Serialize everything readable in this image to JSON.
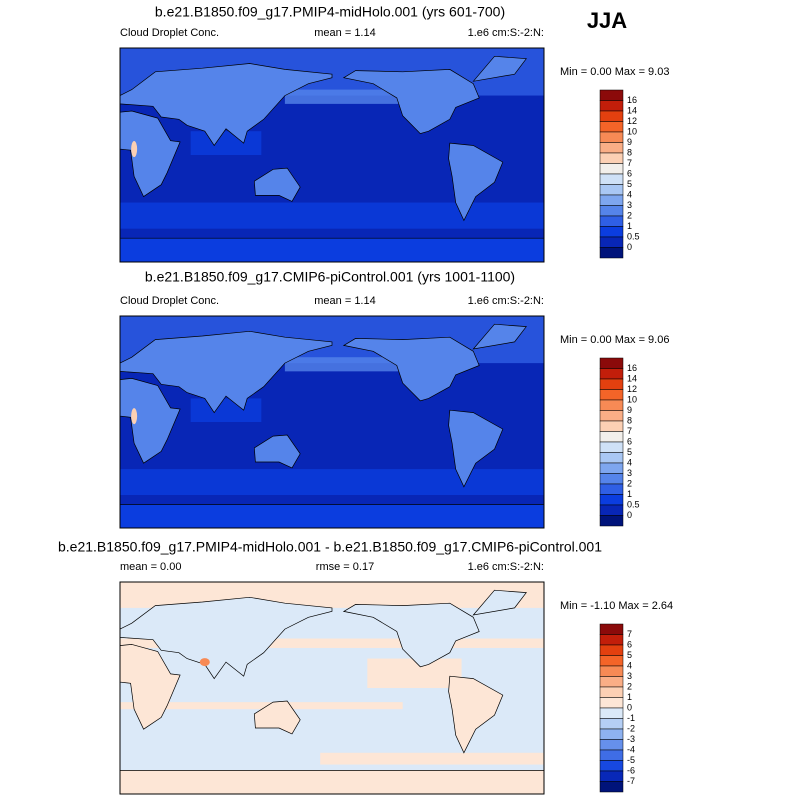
{
  "season": "JJA",
  "panels": [
    {
      "title": "b.e21.B1850.f09_g17.PMIP4-midHolo.001 (yrs 601-700)",
      "header": [
        "Cloud Droplet Conc.",
        "mean =   1.14",
        "1.e6 cm:S:-2:N:"
      ],
      "range": "Min =  0.00 Max =   9.03",
      "colorbar": {
        "labels": [
          "16",
          "14",
          "12",
          "10",
          "9",
          "8",
          "7",
          "6",
          "5",
          "4",
          "3",
          "2",
          "1",
          "0.5",
          "0"
        ],
        "colors": [
          "#8b0a0a",
          "#c21e0a",
          "#e3400f",
          "#f46428",
          "#f78a55",
          "#faae86",
          "#fcd0b4",
          "#f2efeb",
          "#cfe1f7",
          "#a9c7f4",
          "#7ea6ef",
          "#5584ea",
          "#2f5fe5",
          "#0b3ddf",
          "#0826b6",
          "#00137a"
        ]
      },
      "map": "field"
    },
    {
      "title": "b.e21.B1850.f09_g17.CMIP6-piControl.001 (yrs 1001-1100)",
      "header": [
        "Cloud Droplet Conc.",
        "mean =   1.14",
        "1.e6 cm:S:-2:N:"
      ],
      "range": "Min =  0.00 Max =   9.06",
      "colorbar": {
        "labels": [
          "16",
          "14",
          "12",
          "10",
          "9",
          "8",
          "7",
          "6",
          "5",
          "4",
          "3",
          "2",
          "1",
          "0.5",
          "0"
        ],
        "colors": [
          "#8b0a0a",
          "#c21e0a",
          "#e3400f",
          "#f46428",
          "#f78a55",
          "#faae86",
          "#fcd0b4",
          "#f2efeb",
          "#cfe1f7",
          "#a9c7f4",
          "#7ea6ef",
          "#5584ea",
          "#2f5fe5",
          "#0b3ddf",
          "#0826b6",
          "#00137a"
        ]
      },
      "map": "field"
    },
    {
      "title": "b.e21.B1850.f09_g17.PMIP4-midHolo.001 - b.e21.B1850.f09_g17.CMIP6-piControl.001",
      "header": [
        "mean =   0.00",
        "rmse =   0.17",
        "1.e6 cm:S:-2:N:"
      ],
      "range": "Min =  -1.10 Max =   2.64",
      "colorbar": {
        "labels": [
          "7",
          "6",
          "5",
          "4",
          "3",
          "2",
          "1",
          "0",
          "-1",
          "-2",
          "-3",
          "-4",
          "-5",
          "-6",
          "-7"
        ],
        "colors": [
          "#8b0a0a",
          "#c21e0a",
          "#e3400f",
          "#f46428",
          "#f78a55",
          "#faae86",
          "#fcd0b4",
          "#fde6d6",
          "#dbe9f8",
          "#b5cff5",
          "#8eb2f0",
          "#6690eb",
          "#3f6de6",
          "#1748e0",
          "#0828b8",
          "#00137a"
        ]
      },
      "map": "diff"
    }
  ]
}
